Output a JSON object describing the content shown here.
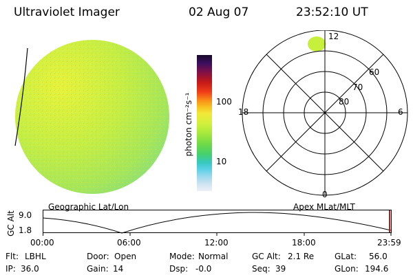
{
  "header": {
    "instrument": "Ultraviolet Imager",
    "date": "02 Aug 07",
    "time": "23:52:10 UT"
  },
  "colorbar": {
    "unit_label": "photon cm⁻²s⁻¹",
    "ticks": [
      "100",
      "10"
    ]
  },
  "polar_plot": {
    "mlt_labels": {
      "top": "12",
      "left": "18",
      "right": "6",
      "bottom": "0"
    },
    "lat_labels": [
      "60",
      "70",
      "80"
    ]
  },
  "plot_titles": {
    "left": "Geographic Lat/Lon",
    "right": "Apex MLat/MLT"
  },
  "altitude_plot": {
    "ylabel": "GC Alt",
    "y_ticks": [
      "9.0",
      "1.8"
    ],
    "x_ticks": [
      "00:00",
      "06:00",
      "12:00",
      "18:00",
      "23:59"
    ]
  },
  "info_rows": [
    [
      {
        "key": "Flt:",
        "value": "LBHL"
      },
      {
        "key": "Door:",
        "value": "Open"
      },
      {
        "key": "Mode:",
        "value": "Normal"
      },
      {
        "key": "GC Alt:",
        "value": "2.1 Re"
      },
      {
        "key": "GLat:",
        "value": "56.0"
      }
    ],
    [
      {
        "key": "IP:",
        "value": "36.0"
      },
      {
        "key": "Gain:",
        "value": "14"
      },
      {
        "key": "Dsp:",
        "value": "-0.0"
      },
      {
        "key": "Seq:",
        "value": "39"
      },
      {
        "key": "GLon:",
        "value": "194.6"
      }
    ]
  ],
  "colors": {
    "disk_main": "#b8ec4a",
    "disk_bright": "#e4f23a",
    "disk_cool": "#6cd6a0",
    "polar_spot": "#c6f03c"
  }
}
